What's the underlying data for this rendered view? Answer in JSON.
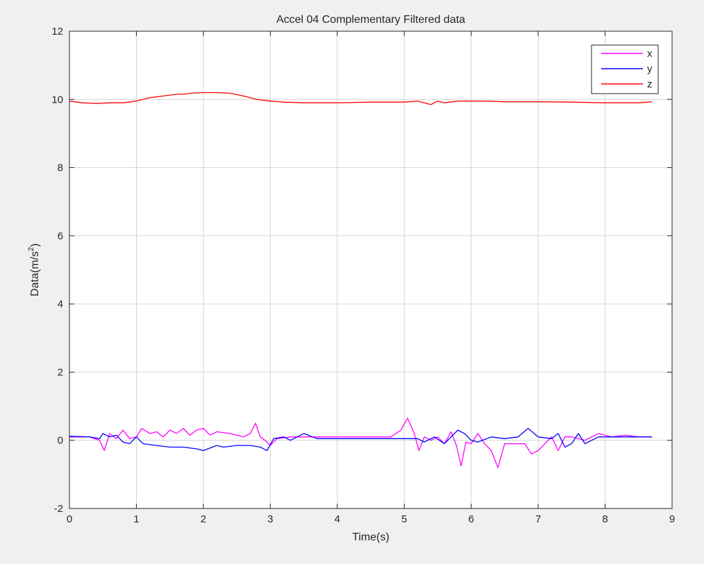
{
  "chart_data": {
    "type": "line",
    "title": "Accel 04 Complementary Filtered data",
    "xlabel": "Time(s)",
    "ylabel_base": "Data(m/s",
    "ylabel_sup": "2",
    "ylabel_close": ")",
    "xlim": [
      0,
      9
    ],
    "ylim": [
      -2,
      12
    ],
    "xticks": [
      0,
      1,
      2,
      3,
      4,
      5,
      6,
      7,
      8,
      9
    ],
    "yticks": [
      -2,
      0,
      2,
      4,
      6,
      8,
      10,
      12
    ],
    "grid": true,
    "legend_position": "top-right",
    "series": [
      {
        "name": "x",
        "color": "#ff00ff",
        "points": [
          [
            0,
            0.1
          ],
          [
            0.3,
            0.1
          ],
          [
            0.45,
            0.0
          ],
          [
            0.52,
            -0.3
          ],
          [
            0.6,
            0.2
          ],
          [
            0.7,
            0.05
          ],
          [
            0.8,
            0.3
          ],
          [
            0.9,
            0.05
          ],
          [
            1.0,
            0.1
          ],
          [
            1.08,
            0.35
          ],
          [
            1.2,
            0.2
          ],
          [
            1.3,
            0.25
          ],
          [
            1.4,
            0.1
          ],
          [
            1.5,
            0.3
          ],
          [
            1.6,
            0.2
          ],
          [
            1.7,
            0.35
          ],
          [
            1.8,
            0.15
          ],
          [
            1.9,
            0.3
          ],
          [
            2.0,
            0.35
          ],
          [
            2.1,
            0.15
          ],
          [
            2.2,
            0.25
          ],
          [
            2.4,
            0.2
          ],
          [
            2.6,
            0.1
          ],
          [
            2.7,
            0.2
          ],
          [
            2.78,
            0.5
          ],
          [
            2.85,
            0.1
          ],
          [
            2.92,
            0.0
          ],
          [
            3.0,
            -0.15
          ],
          [
            3.1,
            0.05
          ],
          [
            3.3,
            0.1
          ],
          [
            3.5,
            0.1
          ],
          [
            4.0,
            0.1
          ],
          [
            4.5,
            0.1
          ],
          [
            4.8,
            0.1
          ],
          [
            4.95,
            0.3
          ],
          [
            5.05,
            0.65
          ],
          [
            5.15,
            0.2
          ],
          [
            5.22,
            -0.3
          ],
          [
            5.3,
            0.1
          ],
          [
            5.4,
            0.0
          ],
          [
            5.5,
            0.1
          ],
          [
            5.6,
            -0.1
          ],
          [
            5.7,
            0.25
          ],
          [
            5.78,
            -0.15
          ],
          [
            5.85,
            -0.75
          ],
          [
            5.92,
            -0.05
          ],
          [
            6.0,
            -0.1
          ],
          [
            6.1,
            0.2
          ],
          [
            6.2,
            -0.1
          ],
          [
            6.3,
            -0.3
          ],
          [
            6.4,
            -0.8
          ],
          [
            6.5,
            -0.1
          ],
          [
            6.6,
            -0.1
          ],
          [
            6.8,
            -0.1
          ],
          [
            6.9,
            -0.4
          ],
          [
            7.0,
            -0.3
          ],
          [
            7.1,
            -0.1
          ],
          [
            7.2,
            0.1
          ],
          [
            7.3,
            -0.3
          ],
          [
            7.4,
            0.1
          ],
          [
            7.5,
            0.1
          ],
          [
            7.7,
            0.0
          ],
          [
            7.9,
            0.2
          ],
          [
            8.1,
            0.1
          ],
          [
            8.3,
            0.15
          ],
          [
            8.5,
            0.1
          ],
          [
            8.7,
            0.1
          ]
        ]
      },
      {
        "name": "y",
        "color": "#0000ff",
        "points": [
          [
            0,
            0.12
          ],
          [
            0.3,
            0.1
          ],
          [
            0.45,
            0.05
          ],
          [
            0.5,
            0.2
          ],
          [
            0.6,
            0.1
          ],
          [
            0.7,
            0.15
          ],
          [
            0.8,
            -0.05
          ],
          [
            0.9,
            -0.1
          ],
          [
            1.0,
            0.1
          ],
          [
            1.1,
            -0.1
          ],
          [
            1.3,
            -0.15
          ],
          [
            1.5,
            -0.2
          ],
          [
            1.7,
            -0.2
          ],
          [
            1.9,
            -0.25
          ],
          [
            2.0,
            -0.3
          ],
          [
            2.2,
            -0.15
          ],
          [
            2.3,
            -0.2
          ],
          [
            2.5,
            -0.15
          ],
          [
            2.7,
            -0.15
          ],
          [
            2.85,
            -0.2
          ],
          [
            2.95,
            -0.3
          ],
          [
            3.05,
            0.05
          ],
          [
            3.2,
            0.1
          ],
          [
            3.3,
            0.0
          ],
          [
            3.5,
            0.2
          ],
          [
            3.7,
            0.05
          ],
          [
            4.0,
            0.05
          ],
          [
            4.5,
            0.05
          ],
          [
            5.0,
            0.05
          ],
          [
            5.2,
            0.05
          ],
          [
            5.3,
            -0.05
          ],
          [
            5.45,
            0.1
          ],
          [
            5.6,
            -0.1
          ],
          [
            5.7,
            0.1
          ],
          [
            5.8,
            0.3
          ],
          [
            5.9,
            0.2
          ],
          [
            6.0,
            0.0
          ],
          [
            6.1,
            -0.05
          ],
          [
            6.3,
            0.1
          ],
          [
            6.5,
            0.05
          ],
          [
            6.7,
            0.1
          ],
          [
            6.85,
            0.35
          ],
          [
            7.0,
            0.1
          ],
          [
            7.2,
            0.05
          ],
          [
            7.3,
            0.2
          ],
          [
            7.4,
            -0.2
          ],
          [
            7.5,
            -0.1
          ],
          [
            7.6,
            0.2
          ],
          [
            7.7,
            -0.1
          ],
          [
            7.9,
            0.1
          ],
          [
            8.2,
            0.1
          ],
          [
            8.5,
            0.1
          ],
          [
            8.7,
            0.1
          ]
        ]
      },
      {
        "name": "z",
        "color": "#ff0000",
        "points": [
          [
            0,
            9.95
          ],
          [
            0.2,
            9.9
          ],
          [
            0.4,
            9.88
          ],
          [
            0.6,
            9.9
          ],
          [
            0.8,
            9.9
          ],
          [
            1.0,
            9.95
          ],
          [
            1.2,
            10.05
          ],
          [
            1.4,
            10.1
          ],
          [
            1.6,
            10.15
          ],
          [
            1.7,
            10.15
          ],
          [
            1.8,
            10.18
          ],
          [
            2.0,
            10.2
          ],
          [
            2.2,
            10.2
          ],
          [
            2.4,
            10.18
          ],
          [
            2.6,
            10.1
          ],
          [
            2.8,
            10.0
          ],
          [
            3.0,
            9.95
          ],
          [
            3.2,
            9.92
          ],
          [
            3.5,
            9.9
          ],
          [
            4.0,
            9.9
          ],
          [
            4.5,
            9.92
          ],
          [
            5.0,
            9.92
          ],
          [
            5.2,
            9.95
          ],
          [
            5.3,
            9.9
          ],
          [
            5.4,
            9.85
          ],
          [
            5.5,
            9.95
          ],
          [
            5.6,
            9.9
          ],
          [
            5.8,
            9.95
          ],
          [
            6.0,
            9.95
          ],
          [
            6.2,
            9.95
          ],
          [
            6.5,
            9.93
          ],
          [
            7.0,
            9.93
          ],
          [
            7.5,
            9.92
          ],
          [
            8.0,
            9.9
          ],
          [
            8.5,
            9.9
          ],
          [
            8.7,
            9.93
          ]
        ]
      }
    ]
  }
}
